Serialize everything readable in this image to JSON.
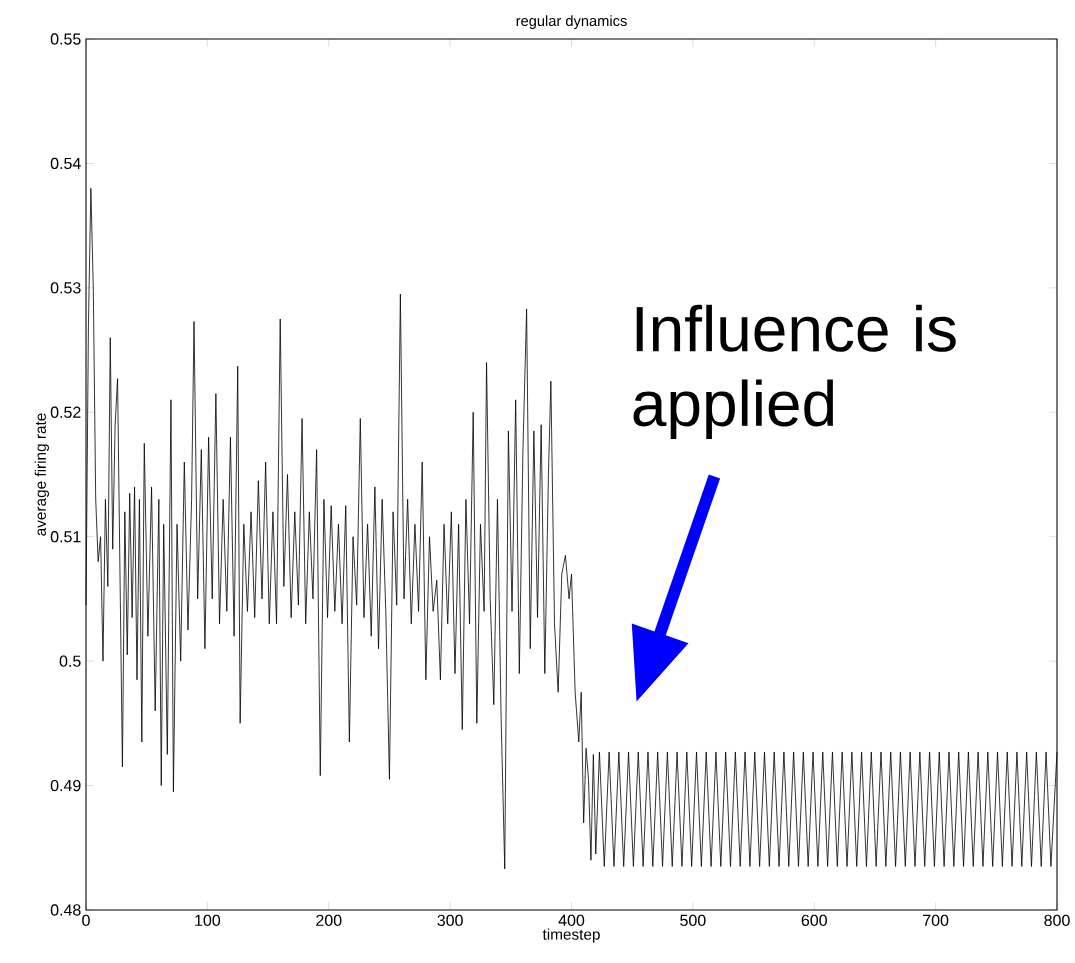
{
  "chart_data": {
    "type": "line",
    "title": "regular dynamics",
    "xlabel": "timestep",
    "ylabel": "average firing rate",
    "xlim": [
      0,
      800
    ],
    "ylim": [
      0.48,
      0.55
    ],
    "xticks": [
      0,
      100,
      200,
      300,
      400,
      500,
      600,
      700,
      800
    ],
    "yticks": [
      0.48,
      0.49,
      0.5,
      0.51,
      0.52,
      0.53,
      0.54,
      0.55
    ],
    "grid": false,
    "legend": false,
    "marker": "none",
    "line_style": "solid",
    "annotations": [
      "Influence is applied"
    ],
    "series": [
      {
        "color": "#000000",
        "x": [
          0,
          2,
          4,
          6,
          8,
          10,
          12,
          14,
          16,
          18,
          20,
          22,
          24,
          26,
          28,
          30,
          32,
          34,
          36,
          38,
          40,
          42,
          44,
          46,
          48,
          51,
          54,
          57,
          60,
          62,
          64,
          67,
          70,
          72,
          75,
          78,
          81,
          84,
          87,
          89,
          92,
          95,
          98,
          101,
          104,
          107,
          110,
          113,
          116,
          119,
          122,
          125,
          127,
          130,
          133,
          136,
          139,
          142,
          145,
          148,
          151,
          154,
          157,
          160,
          163,
          166,
          169,
          172,
          175,
          178,
          181,
          184,
          187,
          190,
          193,
          196,
          199,
          202,
          205,
          208,
          211,
          214,
          217,
          220,
          223,
          226,
          229,
          232,
          235,
          238,
          241,
          244,
          247,
          250,
          253,
          256,
          259,
          262,
          265,
          268,
          271,
          274,
          277,
          280,
          283,
          286,
          289,
          292,
          295,
          298,
          301,
          304,
          307,
          310,
          313,
          316,
          319,
          322,
          325,
          328,
          330,
          333,
          336,
          339,
          342,
          345,
          348,
          351,
          354,
          357,
          360,
          363,
          366,
          369,
          372,
          375,
          378,
          381,
          383,
          386,
          389,
          392,
          395,
          398,
          400,
          403,
          406,
          408,
          410,
          412,
          414,
          416,
          418,
          420,
          423,
          427,
          431,
          435,
          439,
          443,
          447,
          451,
          455,
          459,
          463,
          467,
          471,
          475,
          479,
          483,
          487,
          491,
          495,
          499,
          503,
          507,
          511,
          515,
          519,
          523,
          527,
          531,
          535,
          539,
          543,
          547,
          551,
          555,
          559,
          563,
          567,
          571,
          575,
          579,
          583,
          587,
          591,
          595,
          599,
          603,
          607,
          611,
          615,
          619,
          623,
          627,
          631,
          635,
          639,
          643,
          647,
          651,
          655,
          659,
          663,
          667,
          671,
          675,
          679,
          683,
          687,
          691,
          695,
          699,
          703,
          707,
          711,
          715,
          719,
          723,
          727,
          731,
          735,
          739,
          743,
          747,
          751,
          755,
          759,
          763,
          767,
          771,
          775,
          779,
          783,
          787,
          791,
          795,
          800
        ],
        "values": [
          0.5045,
          0.527,
          0.538,
          0.53,
          0.513,
          0.508,
          0.51,
          0.5,
          0.513,
          0.506,
          0.526,
          0.509,
          0.519,
          0.5227,
          0.507,
          0.4915,
          0.512,
          0.5005,
          0.5135,
          0.5035,
          0.514,
          0.4985,
          0.513,
          0.4935,
          0.5175,
          0.502,
          0.514,
          0.496,
          0.513,
          0.49,
          0.511,
          0.4925,
          0.521,
          0.4895,
          0.511,
          0.5,
          0.516,
          0.5025,
          0.513,
          0.5273,
          0.505,
          0.517,
          0.501,
          0.518,
          0.505,
          0.5215,
          0.503,
          0.513,
          0.504,
          0.518,
          0.502,
          0.5237,
          0.495,
          0.511,
          0.504,
          0.512,
          0.5035,
          0.5145,
          0.505,
          0.516,
          0.503,
          0.512,
          0.503,
          0.5275,
          0.506,
          0.515,
          0.5035,
          0.512,
          0.5045,
          0.5195,
          0.503,
          0.512,
          0.505,
          0.517,
          0.4908,
          0.513,
          0.5035,
          0.5125,
          0.504,
          0.511,
          0.503,
          0.5125,
          0.4935,
          0.51,
          0.5045,
          0.5195,
          0.5035,
          0.511,
          0.502,
          0.514,
          0.501,
          0.513,
          0.504,
          0.4905,
          0.512,
          0.5045,
          0.5295,
          0.505,
          0.513,
          0.503,
          0.511,
          0.504,
          0.516,
          0.4985,
          0.51,
          0.504,
          0.5065,
          0.4985,
          0.511,
          0.503,
          0.512,
          0.499,
          0.511,
          0.4945,
          0.513,
          0.503,
          0.52,
          0.495,
          0.511,
          0.504,
          0.524,
          0.505,
          0.4965,
          0.513,
          0.4955,
          0.4833,
          0.5185,
          0.504,
          0.521,
          0.499,
          0.517,
          0.5283,
          0.501,
          0.5185,
          0.5035,
          0.519,
          0.499,
          0.515,
          0.5225,
          0.503,
          0.4975,
          0.507,
          0.5085,
          0.505,
          0.507,
          0.4975,
          0.4935,
          0.4975,
          0.487,
          0.493,
          0.4905,
          0.484,
          0.4925,
          0.4845,
          0.4927,
          0.4835,
          0.4927,
          0.4835,
          0.4927,
          0.4835,
          0.4927,
          0.4835,
          0.4927,
          0.4835,
          0.4927,
          0.4835,
          0.4927,
          0.4835,
          0.4927,
          0.4835,
          0.4927,
          0.4835,
          0.4927,
          0.4835,
          0.4927,
          0.4835,
          0.4927,
          0.4835,
          0.4927,
          0.4835,
          0.4927,
          0.4835,
          0.4927,
          0.4835,
          0.4927,
          0.4835,
          0.4927,
          0.4835,
          0.4927,
          0.4835,
          0.4927,
          0.4835,
          0.4927,
          0.4835,
          0.4927,
          0.4835,
          0.4927,
          0.4835,
          0.4927,
          0.4835,
          0.4927,
          0.4835,
          0.4927,
          0.4835,
          0.4927,
          0.4835,
          0.4927,
          0.4835,
          0.4927,
          0.4835,
          0.4927,
          0.4835,
          0.4927,
          0.4835,
          0.4927,
          0.4835,
          0.4927,
          0.4835,
          0.4927,
          0.4835,
          0.4927,
          0.4835,
          0.4927,
          0.4835,
          0.4927,
          0.4835,
          0.4927,
          0.4835,
          0.4927,
          0.4835,
          0.4927,
          0.4835,
          0.4927,
          0.4835,
          0.4927,
          0.4835,
          0.4927,
          0.4835,
          0.4927,
          0.4835,
          0.4927,
          0.4835,
          0.4927,
          0.4835,
          0.4927,
          0.4835,
          0.4927,
          0.4835,
          0.4927
        ]
      }
    ]
  }
}
